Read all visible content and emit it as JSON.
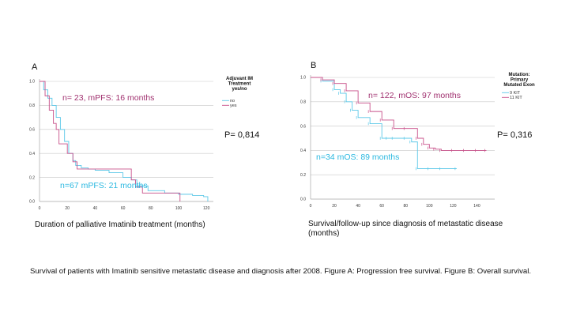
{
  "caption": "Survival of patients with Imatinib sensitive metastatic disease and diagnosis after 2008. Figure A: Progression free survival. Figure B: Overall survival.",
  "chart_data": [
    {
      "type": "line",
      "panel_label": "A",
      "xlabel": "Duration of palliative Imatinib treatment (months)",
      "ylabel": "",
      "xlim": [
        0,
        125
      ],
      "ylim": [
        0,
        1.0
      ],
      "xticks": [
        "0",
        "20",
        "40",
        "60",
        "80",
        "100",
        "120"
      ],
      "yticks": [
        "0.0",
        "0.2",
        "0.4",
        "0.6",
        "0.8",
        "1.0"
      ],
      "grid": true,
      "legend": {
        "title_lines": [
          "Adjuvant IM",
          "Treatment",
          "yes/no"
        ],
        "placement": "top-right"
      },
      "p_value": "P= 0,814",
      "annotations": [
        "n= 23, mPFS: 16 months",
        "n=67 mPFS: 21 months"
      ],
      "series": [
        {
          "name": "no",
          "color": "#5bc8e8",
          "x": [
            0,
            3,
            6,
            9,
            12,
            15,
            18,
            21,
            24,
            26,
            30,
            35,
            40,
            50,
            60,
            66,
            70,
            78,
            90,
            100,
            110,
            118,
            121
          ],
          "y": [
            1.0,
            0.93,
            0.86,
            0.8,
            0.7,
            0.6,
            0.5,
            0.4,
            0.34,
            0.3,
            0.28,
            0.27,
            0.26,
            0.24,
            0.2,
            0.18,
            0.13,
            0.09,
            0.07,
            0.06,
            0.05,
            0.04,
            0.0
          ]
        },
        {
          "name": "yes",
          "color": "#c8508a",
          "x": [
            0,
            4,
            7,
            10,
            12,
            14,
            17,
            20,
            24,
            27,
            34,
            50,
            62,
            66,
            69,
            74,
            80,
            101
          ],
          "y": [
            1.0,
            0.88,
            0.76,
            0.65,
            0.6,
            0.48,
            0.48,
            0.4,
            0.33,
            0.27,
            0.27,
            0.27,
            0.27,
            0.18,
            0.12,
            0.07,
            0.07,
            0.0
          ]
        }
      ]
    },
    {
      "type": "line",
      "panel_label": "B",
      "xlabel": "Survival/follow-up since diagnosis of metastatic disease (months)",
      "ylabel": "",
      "xlim": [
        0,
        155
      ],
      "ylim": [
        0,
        1.0
      ],
      "xticks": [
        "0",
        "20",
        "40",
        "60",
        "80",
        "100",
        "120",
        "140"
      ],
      "yticks": [
        "0.0",
        "0.2",
        "0.4",
        "0.6",
        "0.8",
        "1.0"
      ],
      "grid": true,
      "legend": {
        "title_lines": [
          "Mutation:",
          "Primary",
          "Mutated Exon"
        ],
        "placement": "top-right"
      },
      "p_value": "P= 0,316",
      "annotations": [
        "n= 122, mOS: 97 months",
        "n=34 mOS: 89 months"
      ],
      "series": [
        {
          "name": "9 KIT",
          "color": "#5bc8e8",
          "x": [
            0,
            10,
            20,
            25,
            30,
            35,
            40,
            50,
            60,
            65,
            70,
            80,
            85,
            90,
            100,
            110,
            123
          ],
          "y": [
            1.0,
            0.97,
            0.9,
            0.87,
            0.8,
            0.73,
            0.67,
            0.62,
            0.5,
            0.5,
            0.5,
            0.5,
            0.47,
            0.25,
            0.25,
            0.25,
            0.25
          ]
        },
        {
          "name": "11 KIT",
          "color": "#c8508a",
          "x": [
            0,
            10,
            20,
            30,
            40,
            50,
            60,
            70,
            80,
            90,
            95,
            100,
            105,
            110,
            120,
            130,
            140,
            148
          ],
          "y": [
            1.0,
            0.98,
            0.95,
            0.89,
            0.79,
            0.72,
            0.65,
            0.58,
            0.58,
            0.5,
            0.45,
            0.42,
            0.41,
            0.4,
            0.4,
            0.4,
            0.4,
            0.4
          ]
        }
      ]
    }
  ]
}
